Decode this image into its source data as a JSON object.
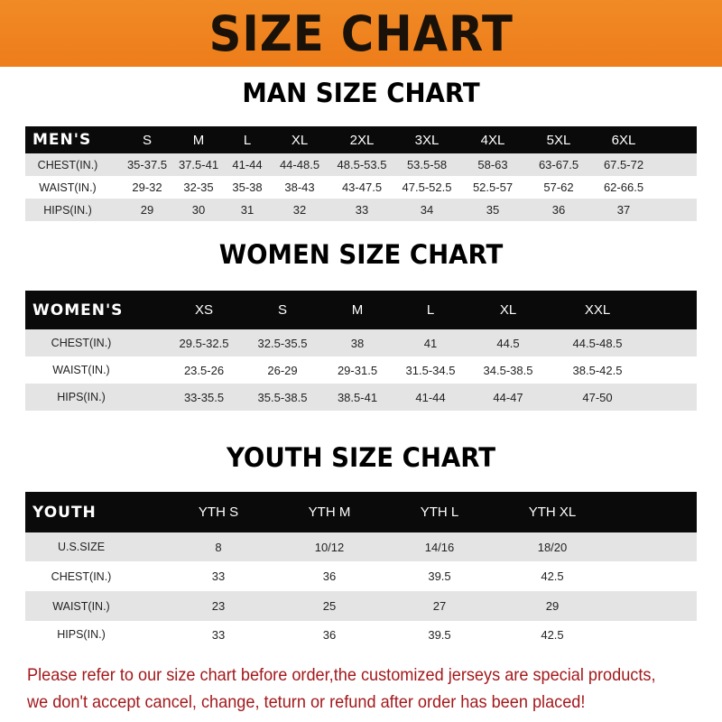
{
  "title": "SIZE CHART",
  "tables": [
    {
      "title": "MAN SIZE CHART",
      "header": [
        "MEN'S",
        "S",
        "M",
        "L",
        "XL",
        "2XL",
        "3XL",
        "4XL",
        "5XL",
        "6XL"
      ],
      "rows": [
        [
          "CHEST(IN.)",
          "35-37.5",
          "37.5-41",
          "41-44",
          "44-48.5",
          "48.5-53.5",
          "53.5-58",
          "58-63",
          "63-67.5",
          "67.5-72"
        ],
        [
          "WAIST(IN.)",
          "29-32",
          "32-35",
          "35-38",
          "38-43",
          "43-47.5",
          "47.5-52.5",
          "52.5-57",
          "57-62",
          "62-66.5"
        ],
        [
          "HIPS(IN.)",
          "29",
          "30",
          "31",
          "32",
          "33",
          "34",
          "35",
          "36",
          "37"
        ]
      ]
    },
    {
      "title": "WOMEN SIZE CHART",
      "header": [
        "WOMEN'S",
        "XS",
        "S",
        "M",
        "L",
        "XL",
        "XXL"
      ],
      "rows": [
        [
          "CHEST(IN.)",
          "29.5-32.5",
          "32.5-35.5",
          "38",
          "41",
          "44.5",
          "44.5-48.5"
        ],
        [
          "WAIST(IN.)",
          "23.5-26",
          "26-29",
          "29-31.5",
          "31.5-34.5",
          "34.5-38.5",
          "38.5-42.5"
        ],
        [
          "HIPS(IN.)",
          "33-35.5",
          "35.5-38.5",
          "38.5-41",
          "41-44",
          "44-47",
          "47-50"
        ]
      ]
    },
    {
      "title": "YOUTH SIZE CHART",
      "header": [
        "YOUTH",
        "YTH S",
        "YTH M",
        "YTH L",
        "YTH XL"
      ],
      "rows": [
        [
          "U.S.SIZE",
          "8",
          "10/12",
          "14/16",
          "18/20"
        ],
        [
          "CHEST(IN.)",
          "33",
          "36",
          "39.5",
          "42.5"
        ],
        [
          "WAIST(IN.)",
          "23",
          "25",
          "27",
          "29"
        ],
        [
          "HIPS(IN.)",
          "33",
          "36",
          "39.5",
          "42.5"
        ]
      ]
    }
  ],
  "notice": "Please refer to our size chart before order,the customized jerseys are special products, we don't accept cancel, change, teturn or refund after order has been placed!",
  "colors": {
    "banner": "#ee7d1a",
    "header": "#0a0a0a",
    "stripe": "#e4e4e4",
    "notice": "#a3191c"
  }
}
